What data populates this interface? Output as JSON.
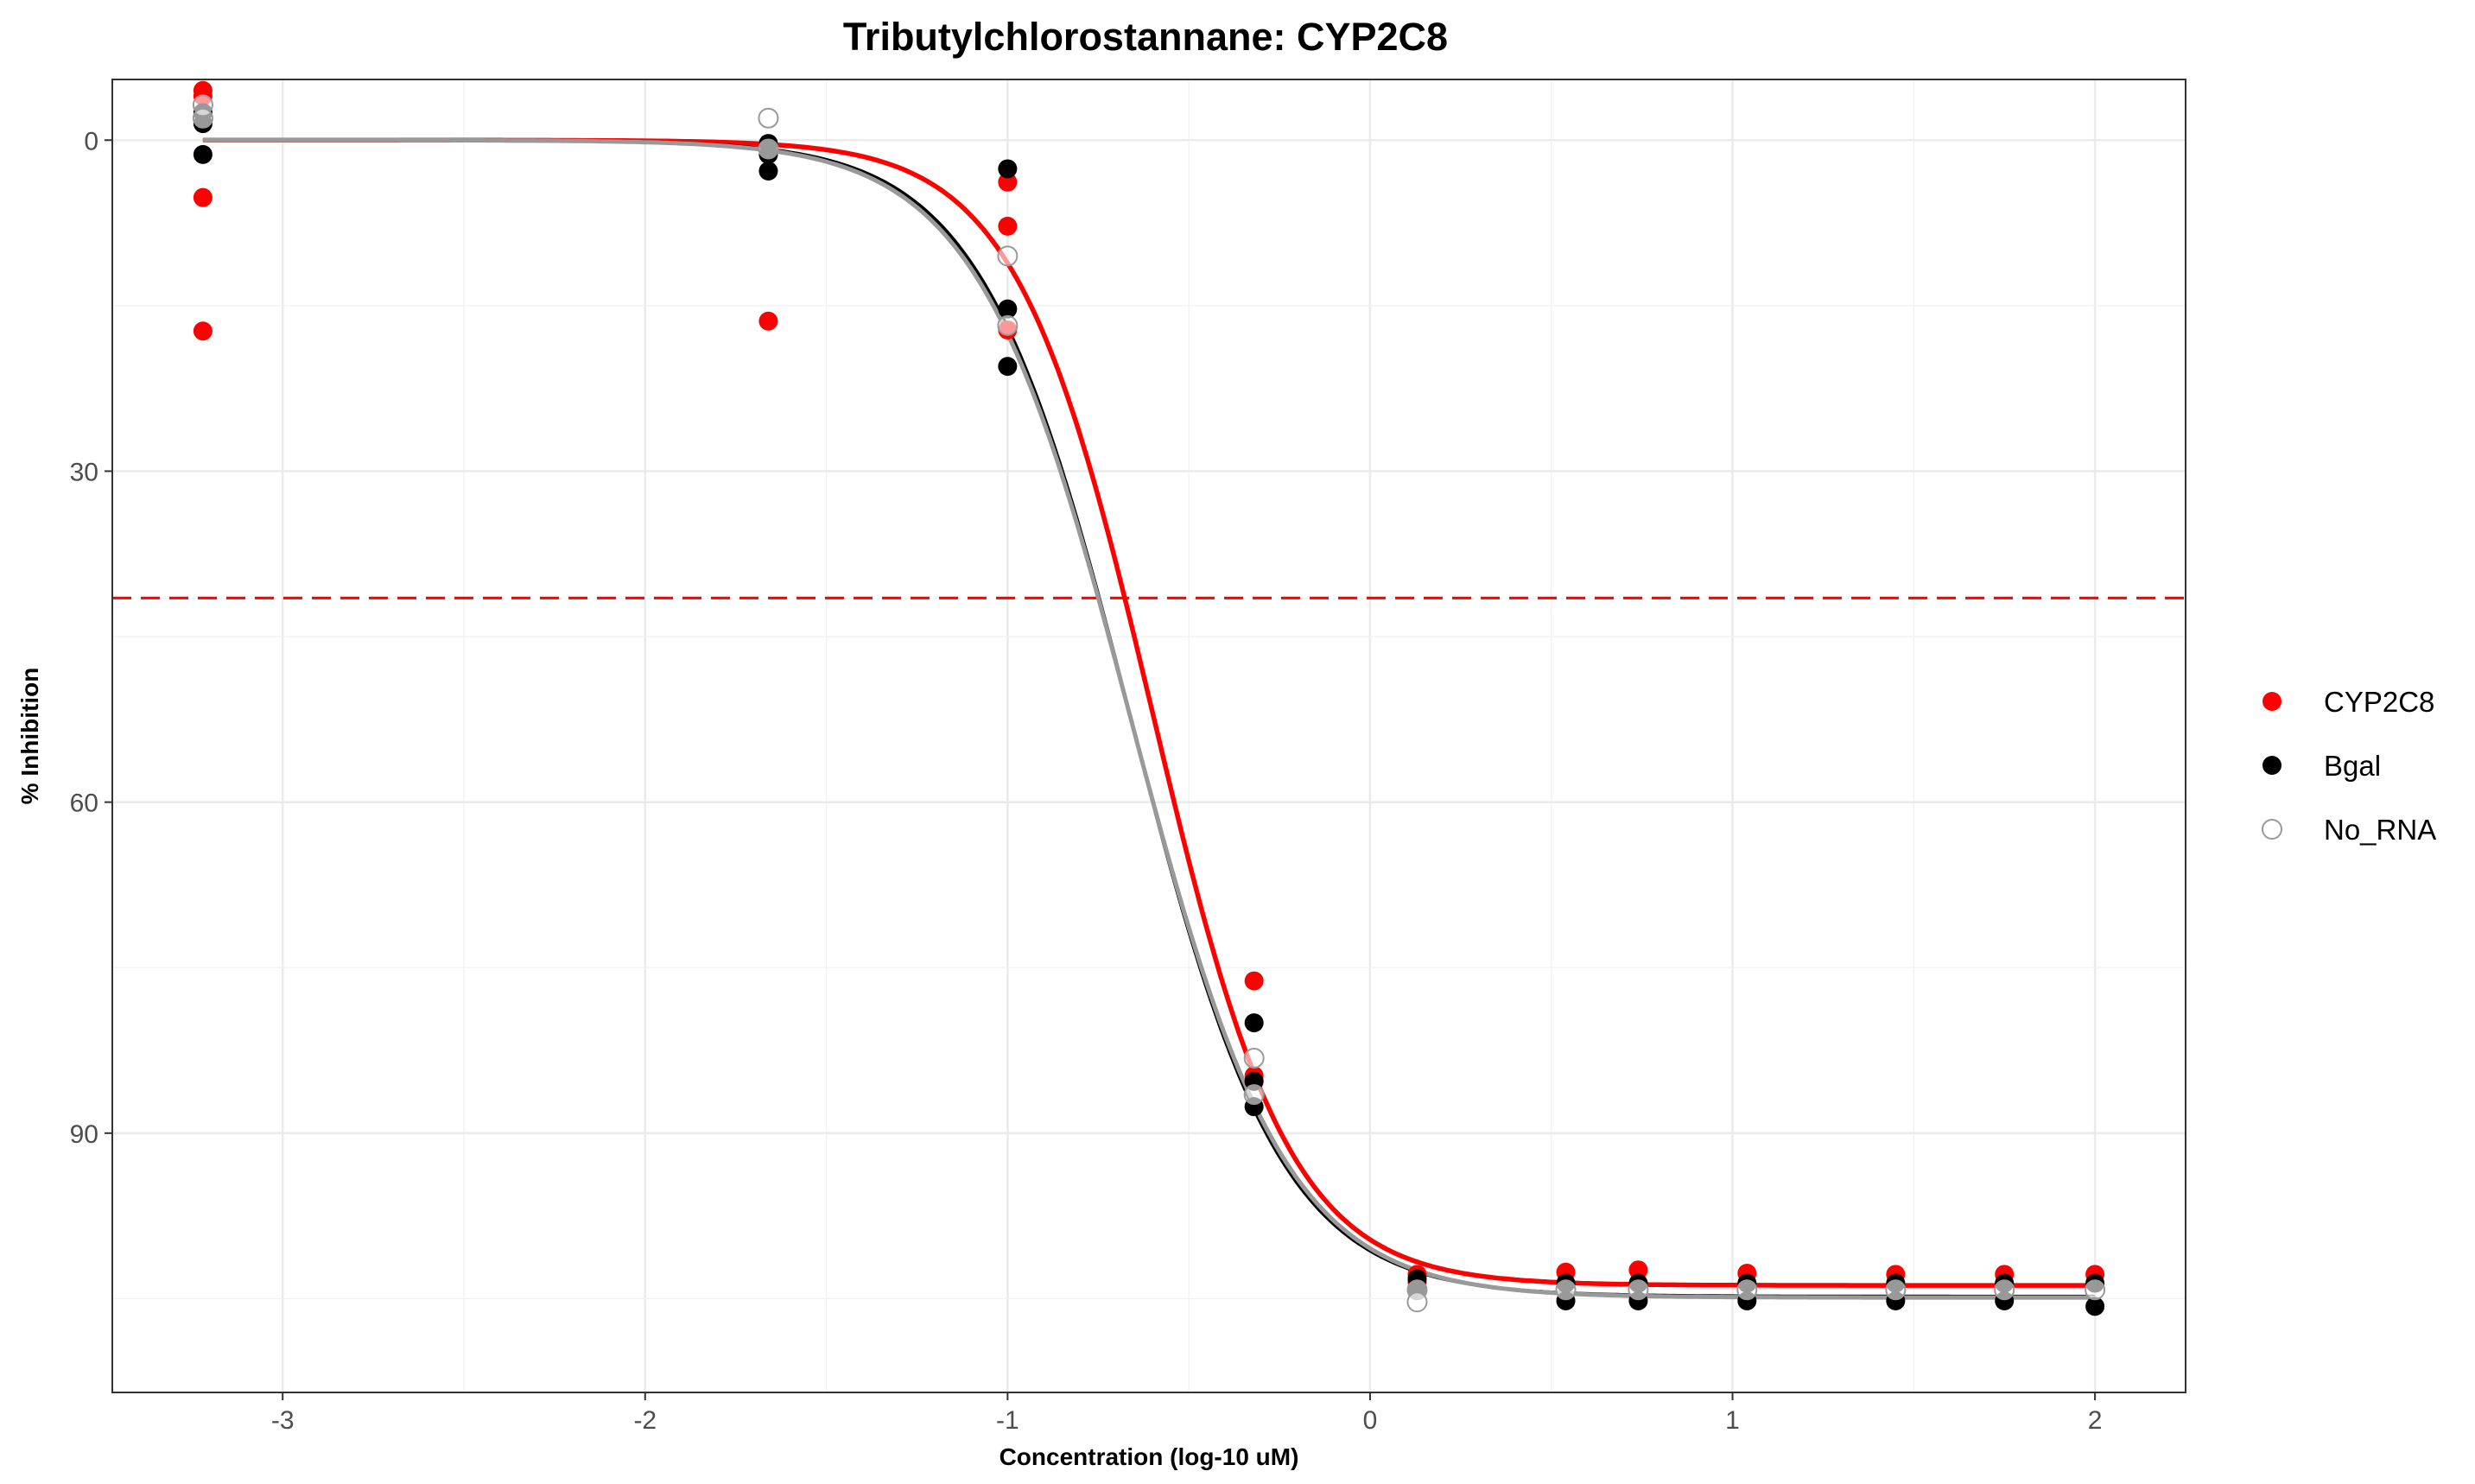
{
  "chart_data": {
    "type": "scatter",
    "title": "Tributylchlorostannane: CYP2C8",
    "xlabel": "Concentration (log-10 uM)",
    "ylabel": "% Inhibition",
    "xlim": [
      -3.47,
      2.25
    ],
    "ylim": [
      -5.5,
      113.5
    ],
    "y_reversed": true,
    "x_ticks": [
      -3,
      -2,
      -1,
      0,
      1,
      2
    ],
    "y_ticks": [
      0,
      30,
      60,
      90
    ],
    "grid": true,
    "legend_position": "right",
    "threshold_line": {
      "y": 41.5,
      "color": "#ff0000",
      "style": "dashed"
    },
    "series": [
      {
        "name": "CYP2C8",
        "marker": "filled",
        "color": "#ff0000",
        "points": [
          [
            -3.22,
            -4.5
          ],
          [
            -3.22,
            -4.0
          ],
          [
            -3.22,
            5.2
          ],
          [
            -3.22,
            17.3
          ],
          [
            -1.66,
            16.4
          ],
          [
            -1.0,
            3.8
          ],
          [
            -1.0,
            7.8
          ],
          [
            -1.0,
            17.2
          ],
          [
            -0.32,
            76.2
          ],
          [
            -0.32,
            84.8
          ],
          [
            -0.32,
            85.3
          ],
          [
            0.13,
            102.8
          ],
          [
            0.13,
            103.5
          ],
          [
            0.54,
            102.6
          ],
          [
            0.74,
            102.4
          ],
          [
            1.04,
            102.7
          ],
          [
            1.45,
            102.8
          ],
          [
            1.75,
            102.8
          ],
          [
            2.0,
            102.8
          ]
        ],
        "curve": {
          "top": 0,
          "bottom": 103.8,
          "logIC50": -0.6,
          "hill": 2.3
        }
      },
      {
        "name": "Bgal",
        "marker": "filled",
        "color": "#000000",
        "points": [
          [
            -3.22,
            -2.5
          ],
          [
            -3.22,
            -1.5
          ],
          [
            -3.22,
            1.3
          ],
          [
            -1.66,
            0.3
          ],
          [
            -1.66,
            1.3
          ],
          [
            -1.66,
            2.8
          ],
          [
            -1.0,
            2.6
          ],
          [
            -1.0,
            15.3
          ],
          [
            -1.0,
            20.5
          ],
          [
            -0.32,
            80.0
          ],
          [
            -0.32,
            85.3
          ],
          [
            -0.32,
            87.6
          ],
          [
            0.13,
            103.2
          ],
          [
            0.13,
            104.2
          ],
          [
            0.54,
            103.6
          ],
          [
            0.54,
            105.2
          ],
          [
            0.74,
            103.6
          ],
          [
            0.74,
            105.2
          ],
          [
            1.04,
            103.6
          ],
          [
            1.04,
            105.2
          ],
          [
            1.45,
            103.6
          ],
          [
            1.45,
            105.2
          ],
          [
            1.75,
            103.6
          ],
          [
            1.75,
            105.2
          ],
          [
            2.0,
            103.6
          ],
          [
            2.0,
            105.7
          ]
        ],
        "curve": {
          "top": 0,
          "bottom": 104.8,
          "logIC50": -0.66,
          "hill": 2.1
        }
      },
      {
        "name": "No_RNA",
        "marker": "open",
        "color": "#999999",
        "points": [
          [
            -3.22,
            -3.2
          ],
          [
            -3.22,
            -2.0
          ],
          [
            -1.66,
            -2.0
          ],
          [
            -1.66,
            0.8
          ],
          [
            -1.0,
            10.5
          ],
          [
            -1.0,
            16.8
          ],
          [
            -0.32,
            83.2
          ],
          [
            -0.32,
            86.5
          ],
          [
            0.13,
            104.2
          ],
          [
            0.13,
            105.3
          ],
          [
            0.54,
            104.2
          ],
          [
            0.74,
            104.2
          ],
          [
            1.04,
            104.2
          ],
          [
            1.45,
            104.2
          ],
          [
            1.75,
            104.2
          ],
          [
            2.0,
            104.2
          ]
        ],
        "curve": {
          "top": 0,
          "bottom": 104.9,
          "logIC50": -0.66,
          "hill": 2.05
        }
      }
    ],
    "curve_range": [
      -3.22,
      2.0
    ]
  }
}
